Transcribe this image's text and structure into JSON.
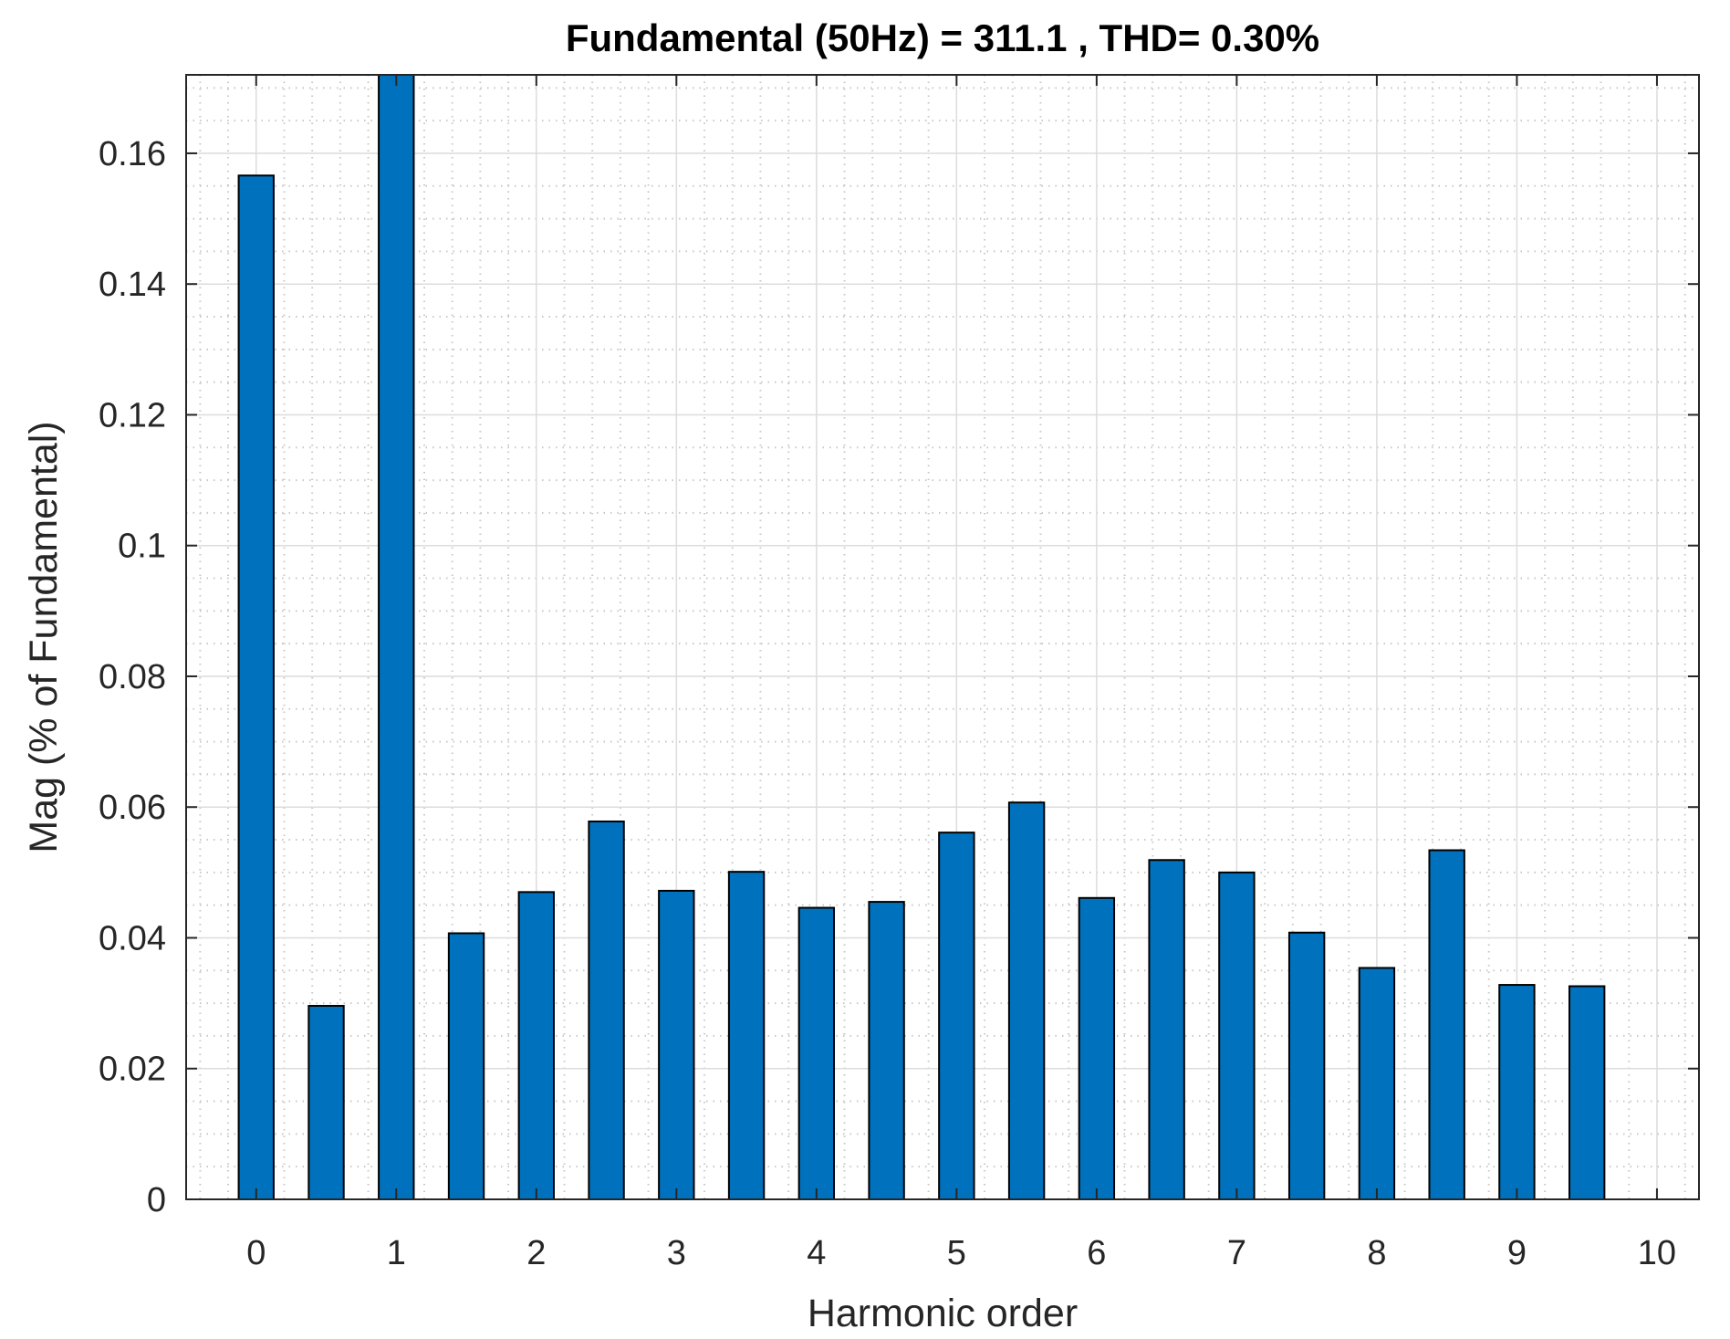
{
  "chart_data": {
    "type": "bar",
    "title": "Fundamental (50Hz) = 311.1 , THD= 0.30%",
    "xlabel": "Harmonic order",
    "ylabel": "Mag (% of Fundamental)",
    "xlim": [
      -0.5,
      10.3
    ],
    "ylim": [
      0,
      0.172
    ],
    "xticks": [
      0,
      1,
      2,
      3,
      4,
      5,
      6,
      7,
      8,
      9,
      10
    ],
    "xtick_labels": [
      "0",
      "1",
      "2",
      "3",
      "4",
      "5",
      "6",
      "7",
      "8",
      "9",
      "10"
    ],
    "yticks": [
      0,
      0.02,
      0.04,
      0.06,
      0.08,
      0.1,
      0.12,
      0.14,
      0.16
    ],
    "ytick_labels": [
      "0",
      "0.02",
      "0.04",
      "0.06",
      "0.08",
      "0.1",
      "0.12",
      "0.14",
      "0.16"
    ],
    "grid": true,
    "minor_grid": true,
    "bar_width": 0.25,
    "bar_color": "#0072BD",
    "x": [
      0,
      0.5,
      1,
      1.5,
      2,
      2.5,
      3,
      3.5,
      4,
      4.5,
      5,
      5.5,
      6,
      6.5,
      7,
      7.5,
      8,
      8.5,
      9,
      9.5
    ],
    "values": [
      0.1566,
      0.0296,
      0.176,
      0.0407,
      0.047,
      0.0578,
      0.0472,
      0.0501,
      0.0446,
      0.0455,
      0.0561,
      0.0607,
      0.0461,
      0.0519,
      0.05,
      0.0408,
      0.0354,
      0.0534,
      0.0328,
      0.0326
    ]
  }
}
